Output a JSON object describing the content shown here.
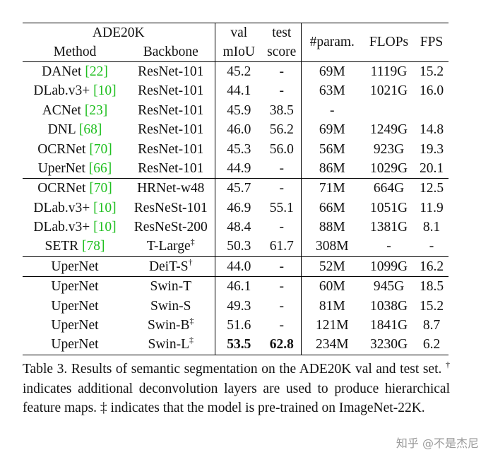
{
  "headers": {
    "dataset": "ADE20K",
    "method": "Method",
    "backbone": "Backbone",
    "val_top": "val",
    "val_bottom": "mIoU",
    "test_top": "test",
    "test_bottom": "score",
    "param": "#param.",
    "flops": "FLOPs",
    "fps": "FPS"
  },
  "rows": [
    {
      "method": "DANet",
      "ref": "[22]",
      "backbone": "ResNet-101",
      "sup": "",
      "val": "45.2",
      "test": "-",
      "param": "69M",
      "flops": "1119G",
      "fps": "15.2"
    },
    {
      "method": "DLab.v3+",
      "ref": "[10]",
      "backbone": "ResNet-101",
      "sup": "",
      "val": "44.1",
      "test": "-",
      "param": "63M",
      "flops": "1021G",
      "fps": "16.0"
    },
    {
      "method": "ACNet",
      "ref": "[23]",
      "backbone": "ResNet-101",
      "sup": "",
      "val": "45.9",
      "test": "38.5",
      "param": "-",
      "flops": "",
      "fps": ""
    },
    {
      "method": "DNL",
      "ref": "[68]",
      "backbone": "ResNet-101",
      "sup": "",
      "val": "46.0",
      "test": "56.2",
      "param": "69M",
      "flops": "1249G",
      "fps": "14.8"
    },
    {
      "method": "OCRNet",
      "ref": "[70]",
      "backbone": "ResNet-101",
      "sup": "",
      "val": "45.3",
      "test": "56.0",
      "param": "56M",
      "flops": "923G",
      "fps": "19.3"
    },
    {
      "method": "UperNet",
      "ref": "[66]",
      "backbone": "ResNet-101",
      "sup": "",
      "val": "44.9",
      "test": "-",
      "param": "86M",
      "flops": "1029G",
      "fps": "20.1"
    },
    {
      "method": "OCRNet",
      "ref": "[70]",
      "backbone": "HRNet-w48",
      "sup": "",
      "val": "45.7",
      "test": "-",
      "param": "71M",
      "flops": "664G",
      "fps": "12.5"
    },
    {
      "method": "DLab.v3+",
      "ref": "[10]",
      "backbone": "ResNeSt-101",
      "sup": "",
      "val": "46.9",
      "test": "55.1",
      "param": "66M",
      "flops": "1051G",
      "fps": "11.9"
    },
    {
      "method": "DLab.v3+",
      "ref": "[10]",
      "backbone": "ResNeSt-200",
      "sup": "",
      "val": "48.4",
      "test": "-",
      "param": "88M",
      "flops": "1381G",
      "fps": "8.1"
    },
    {
      "method": "SETR",
      "ref": "[78]",
      "backbone": "T-Large",
      "sup": "‡",
      "val": "50.3",
      "test": "61.7",
      "param": "308M",
      "flops": "-",
      "fps": "-"
    },
    {
      "method": "UperNet",
      "ref": "",
      "backbone": "DeiT-S",
      "sup": "†",
      "val": "44.0",
      "test": "-",
      "param": "52M",
      "flops": "1099G",
      "fps": "16.2"
    },
    {
      "method": "UperNet",
      "ref": "",
      "backbone": "Swin-T",
      "sup": "",
      "val": "46.1",
      "test": "-",
      "param": "60M",
      "flops": "945G",
      "fps": "18.5"
    },
    {
      "method": "UperNet",
      "ref": "",
      "backbone": "Swin-S",
      "sup": "",
      "val": "49.3",
      "test": "-",
      "param": "81M",
      "flops": "1038G",
      "fps": "15.2"
    },
    {
      "method": "UperNet",
      "ref": "",
      "backbone": "Swin-B",
      "sup": "‡",
      "val": "51.6",
      "test": "-",
      "param": "121M",
      "flops": "1841G",
      "fps": "8.7"
    },
    {
      "method": "UperNet",
      "ref": "",
      "backbone": "Swin-L",
      "sup": "‡",
      "val": "53.5",
      "test": "62.8",
      "param": "234M",
      "flops": "3230G",
      "fps": "6.2"
    }
  ],
  "caption": {
    "part1": "Table 3. Results of semantic segmentation on the ADE20K val and test set. ",
    "dagger": "†",
    "part2": " indicates additional deconvolution layers are used to produce hierarchical feature maps. ",
    "ddagger": "‡",
    "part3": " indicates that the model is pre-trained on ImageNet-22K."
  },
  "watermark": "知乎 @不是杰尼"
}
